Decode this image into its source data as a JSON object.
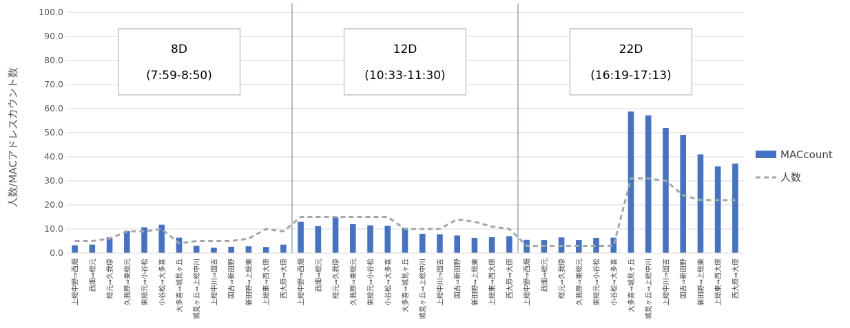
{
  "chart_data": {
    "type": "bar",
    "ylabel": "人数/MACアドレスカウント数",
    "ylim": [
      0,
      100
    ],
    "yticks": [
      "0.0",
      "10.0",
      "20.0",
      "30.0",
      "40.0",
      "50.0",
      "60.0",
      "70.0",
      "80.0",
      "90.0",
      "100.0"
    ],
    "categories": [
      "上総中野⇒西畑",
      "西畑⇒総元",
      "総元⇒久我原",
      "久我原⇒東総元",
      "東総元⇒小谷松",
      "小谷松⇒大多喜",
      "大多喜⇒城見ヶ丘",
      "城見ヶ丘⇒上総中川",
      "上総中川⇒国吉",
      "国吉⇒新田野",
      "新田野⇒上総東",
      "上総東⇒西大原",
      "西大原⇒大原",
      "上総中野⇒西畑",
      "西畑⇒総元",
      "総元⇒久我原",
      "久我原⇒東総元",
      "東総元⇒小谷松",
      "小谷松⇒大多喜",
      "大多喜⇒城見ヶ丘",
      "城見ヶ丘⇒上総中川",
      "上総中川⇒国吉",
      "国吉⇒新田野",
      "新田野⇒上総東",
      "上総東⇒西大原",
      "西大原⇒大原",
      "上総中野⇒西畑",
      "西畑⇒総元",
      "総元⇒久我原",
      "久我原⇒東総元",
      "東総元⇒小谷松",
      "小谷松⇒大多喜",
      "大多喜⇒城見ヶ丘",
      "城見ヶ丘⇒上総中川",
      "上総中川⇒国吉",
      "国吉⇒新田野",
      "新田野⇒上総東",
      "上総東⇒西大原",
      "西大原⇒大原"
    ],
    "series": [
      {
        "name": "MACcount",
        "kind": "bar",
        "color": "#4472C4",
        "values": [
          3.2,
          3.5,
          6.5,
          9.2,
          10.7,
          11.8,
          6.4,
          3.0,
          2.2,
          2.6,
          2.8,
          2.5,
          3.5,
          13.0,
          11.2,
          14.8,
          12.0,
          11.5,
          11.3,
          10.5,
          8.0,
          7.8,
          7.3,
          6.3,
          6.6,
          7.0,
          5.5,
          5.4,
          6.5,
          5.4,
          6.3,
          6.4,
          58.8,
          57.2,
          52.0,
          49.1,
          41.0,
          36.0,
          37.2
        ]
      },
      {
        "name": "人数",
        "kind": "line",
        "style": "dashed",
        "color": "#A6A6A6",
        "values": [
          5,
          5,
          6,
          9,
          9,
          10,
          4,
          5,
          5,
          5,
          6,
          10,
          9,
          15,
          15,
          15,
          15,
          15,
          15,
          10,
          10,
          10,
          14,
          13,
          11,
          10,
          3,
          3,
          3,
          3,
          3,
          3,
          31,
          31,
          30,
          24,
          22,
          22,
          22
        ]
      }
    ],
    "groups": [
      {
        "name": "8D",
        "time": "(7:59-8:50)"
      },
      {
        "name": "12D",
        "time": "(10:33-11:30)"
      },
      {
        "name": "22D",
        "time": "(16:19-17:13)"
      }
    ],
    "legend_position": "right",
    "grid": true
  }
}
